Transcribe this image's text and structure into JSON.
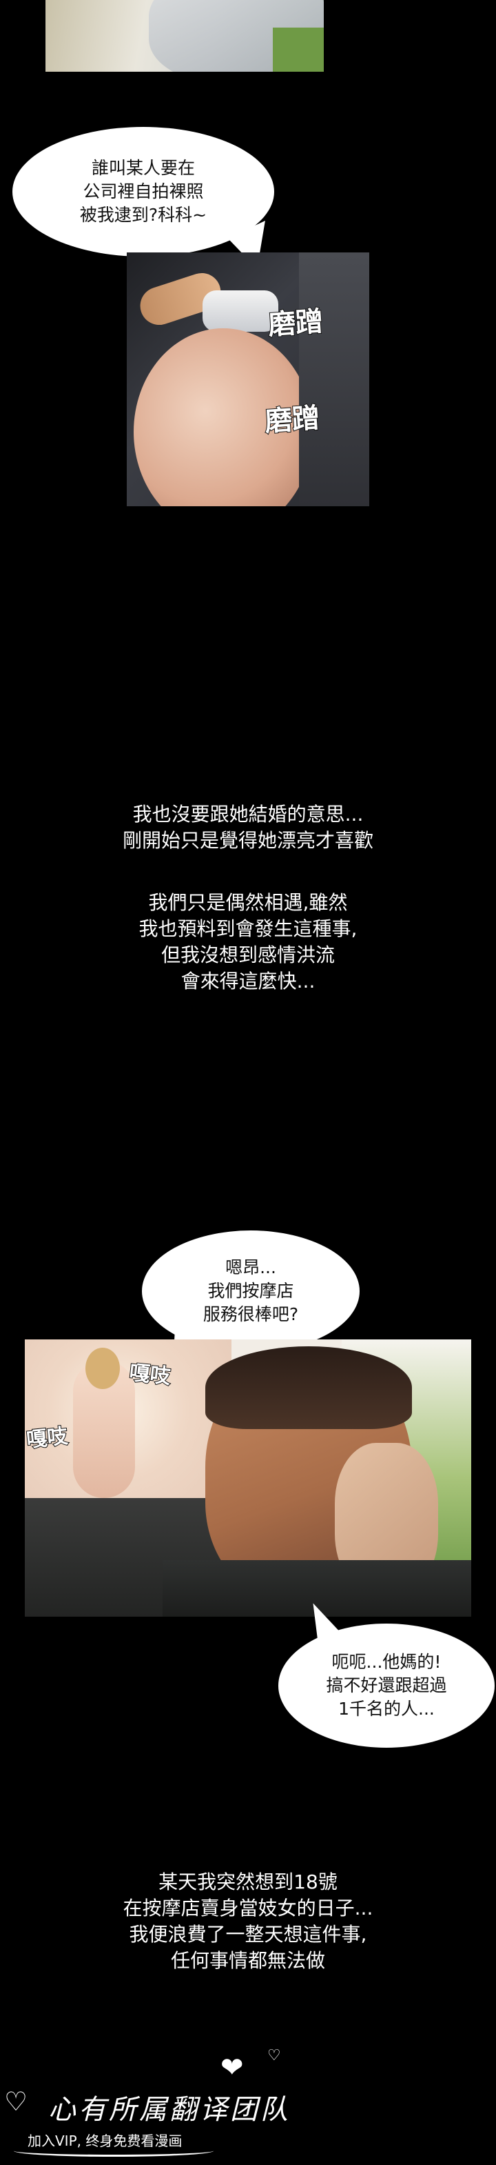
{
  "panels": {
    "top": {
      "caption_bubble": "誰叫某人要在\n公司裡自拍裸照\n被我逮到?科科~"
    },
    "rub": {
      "sfx_1": "磨蹭",
      "sfx_2": "磨蹭"
    },
    "massage": {
      "bubble_top": "嗯昂...\n我們按摩店\n服務很棒吧?",
      "sfx_left": "嘎吱",
      "sfx_right": "嘎吱",
      "bubble_bottom": "呃呃...他媽的!\n搞不好還跟超過\n1千名的人..."
    }
  },
  "captions": {
    "first": "我也沒要跟她結婚的意思...\n剛開始只是覺得她漂亮才喜歡",
    "second": "我們只是偶然相遇,雖然\n我也預料到會發生這種事,\n但我沒想到感情洪流\n會來得這麼快...",
    "third": "某天我突然想到18號\n在按摩店賣身當妓女的日子...\n我便浪費了一整天想這件事,\n任何事情都無法做"
  },
  "footer": {
    "brand": "心有所属翻译团队",
    "tagline": "加入VIP, 终身免费看漫画"
  }
}
